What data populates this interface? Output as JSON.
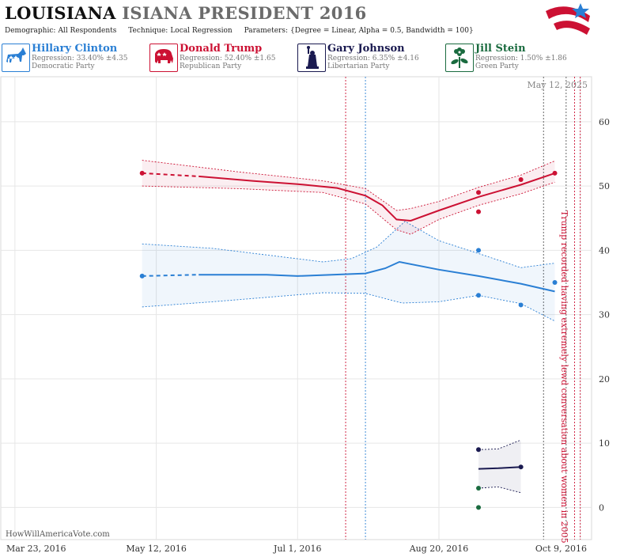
{
  "header": {
    "title_state": "LOUISIANA",
    "title_rest": "ISIANA PRESIDENT 2016",
    "params": [
      {
        "label": "Demographic:",
        "value": "All Respondents"
      },
      {
        "label": "Technique:",
        "value": "Local Regression"
      },
      {
        "label": "Parameters:",
        "value": "{Degree = Linear, Alpha = 0.5, Bandwidth = 100}"
      }
    ]
  },
  "candidates": [
    {
      "name": "Hillary Clinton",
      "regression": "Regression: 33.40% ±4.35",
      "party": "Democratic Party",
      "color": "#2a7fd4",
      "icon": "donkey-icon"
    },
    {
      "name": "Donald Trump",
      "regression": "Regression: 52.40% ±1.65",
      "party": "Republican Party",
      "color": "#cc1133",
      "icon": "elephant-icon"
    },
    {
      "name": "Gary Johnson",
      "regression": "Regression: 6.35% ±4.16",
      "party": "Libertarian Party",
      "color": "#1a1a50",
      "icon": "statue-of-liberty-icon"
    },
    {
      "name": "Jill Stein",
      "regression": "Regression: 1.50% ±1.86",
      "party": "Green Party",
      "color": "#1a6b3f",
      "icon": "flower-icon"
    }
  ],
  "chart_data": {
    "type": "line",
    "x_tick_labels": [
      "Mar 23, 2016",
      "May 12, 2016",
      "Jul 1, 2016",
      "Aug 20, 2016",
      "Oct 9, 2016"
    ],
    "y_ticks": [
      0,
      10,
      20,
      30,
      40,
      50,
      60
    ],
    "ylim": [
      -5,
      67
    ],
    "xlim": [
      "2016-03-18",
      "2016-10-13"
    ],
    "current_date_label": "May 12, 2025",
    "annotation": "Trump recorded having extremely lewd conversation about women in 2005",
    "watermark": "HowWillAmericaVote.com",
    "event_lines": [
      {
        "date": "2016-07-18",
        "color": "#cc1133"
      },
      {
        "date": "2016-07-25",
        "color": "#2a7fd4"
      },
      {
        "date": "2016-09-26",
        "color": "#555555"
      },
      {
        "date": "2016-10-04",
        "color": "#555555"
      },
      {
        "date": "2016-10-07",
        "color": "#cc1133"
      },
      {
        "date": "2016-10-09",
        "color": "#cc1133"
      }
    ],
    "series": [
      {
        "name": "Hillary Clinton",
        "color": "#2a7fd4",
        "points": [
          [
            "2016-05-07",
            36
          ],
          [
            "2016-09-03",
            40
          ],
          [
            "2016-09-03",
            33
          ],
          [
            "2016-09-18",
            31.5
          ],
          [
            "2016-09-30",
            35
          ]
        ],
        "trend": [
          [
            "2016-05-07",
            36
          ],
          [
            "2016-05-27",
            36.2
          ],
          [
            "2016-06-20",
            36.2
          ],
          [
            "2016-07-01",
            36
          ],
          [
            "2016-07-25",
            36.4
          ],
          [
            "2016-08-01",
            37.2
          ],
          [
            "2016-08-06",
            38.2
          ],
          [
            "2016-08-20",
            37
          ],
          [
            "2016-09-03",
            36
          ],
          [
            "2016-09-18",
            34.8
          ],
          [
            "2016-09-30",
            33.6
          ]
        ],
        "upper": [
          [
            "2016-05-07",
            41
          ],
          [
            "2016-06-01",
            40.3
          ],
          [
            "2016-07-10",
            38.2
          ],
          [
            "2016-07-20",
            38.7
          ],
          [
            "2016-07-29",
            40.5
          ],
          [
            "2016-08-08",
            44.5
          ],
          [
            "2016-08-20",
            41.5
          ],
          [
            "2016-09-03",
            39.5
          ],
          [
            "2016-09-18",
            37.3
          ],
          [
            "2016-09-30",
            38
          ]
        ],
        "lower": [
          [
            "2016-05-07",
            31.2
          ],
          [
            "2016-06-01",
            32
          ],
          [
            "2016-07-10",
            33.4
          ],
          [
            "2016-07-25",
            33.3
          ],
          [
            "2016-08-07",
            31.8
          ],
          [
            "2016-08-20",
            32
          ],
          [
            "2016-09-03",
            33
          ],
          [
            "2016-09-18",
            31.7
          ],
          [
            "2016-09-30",
            29
          ]
        ]
      },
      {
        "name": "Donald Trump",
        "color": "#cc1133",
        "points": [
          [
            "2016-05-07",
            52
          ],
          [
            "2016-09-03",
            49
          ],
          [
            "2016-09-03",
            46
          ],
          [
            "2016-09-18",
            51
          ],
          [
            "2016-09-30",
            52
          ]
        ],
        "trend": [
          [
            "2016-05-07",
            52
          ],
          [
            "2016-05-27",
            51.5
          ],
          [
            "2016-06-15",
            50.8
          ],
          [
            "2016-07-01",
            50.3
          ],
          [
            "2016-07-15",
            49.7
          ],
          [
            "2016-07-25",
            48.5
          ],
          [
            "2016-07-31",
            47
          ],
          [
            "2016-08-05",
            44.8
          ],
          [
            "2016-08-10",
            44.6
          ],
          [
            "2016-08-20",
            46.2
          ],
          [
            "2016-09-03",
            48.3
          ],
          [
            "2016-09-18",
            50.2
          ],
          [
            "2016-09-30",
            52
          ]
        ],
        "upper": [
          [
            "2016-05-07",
            54
          ],
          [
            "2016-06-10",
            52.2
          ],
          [
            "2016-07-10",
            50.8
          ],
          [
            "2016-07-25",
            49.6
          ],
          [
            "2016-08-05",
            46.2
          ],
          [
            "2016-08-10",
            46.5
          ],
          [
            "2016-08-20",
            47.6
          ],
          [
            "2016-09-03",
            49.8
          ],
          [
            "2016-09-18",
            51.7
          ],
          [
            "2016-09-30",
            53.9
          ]
        ],
        "lower": [
          [
            "2016-05-07",
            50
          ],
          [
            "2016-06-10",
            49.6
          ],
          [
            "2016-07-10",
            49
          ],
          [
            "2016-07-25",
            47.2
          ],
          [
            "2016-08-05",
            43.2
          ],
          [
            "2016-08-10",
            42.5
          ],
          [
            "2016-08-20",
            44.8
          ],
          [
            "2016-09-03",
            47
          ],
          [
            "2016-09-18",
            48.8
          ],
          [
            "2016-09-30",
            50.6
          ]
        ]
      },
      {
        "name": "Gary Johnson",
        "color": "#1a1a50",
        "points": [
          [
            "2016-09-03",
            9
          ],
          [
            "2016-09-18",
            6.3
          ]
        ],
        "trend": [
          [
            "2016-09-03",
            6
          ],
          [
            "2016-09-10",
            6.1
          ],
          [
            "2016-09-18",
            6.3
          ]
        ],
        "upper": [
          [
            "2016-09-03",
            9
          ],
          [
            "2016-09-10",
            9.1
          ],
          [
            "2016-09-18",
            10.5
          ]
        ],
        "lower": [
          [
            "2016-09-03",
            3
          ],
          [
            "2016-09-10",
            3.2
          ],
          [
            "2016-09-18",
            2.3
          ]
        ]
      },
      {
        "name": "Jill Stein",
        "color": "#1a6b3f",
        "points": [
          [
            "2016-09-03",
            3
          ],
          [
            "2016-09-03",
            0
          ]
        ],
        "trend": [],
        "upper": [],
        "lower": []
      }
    ]
  }
}
